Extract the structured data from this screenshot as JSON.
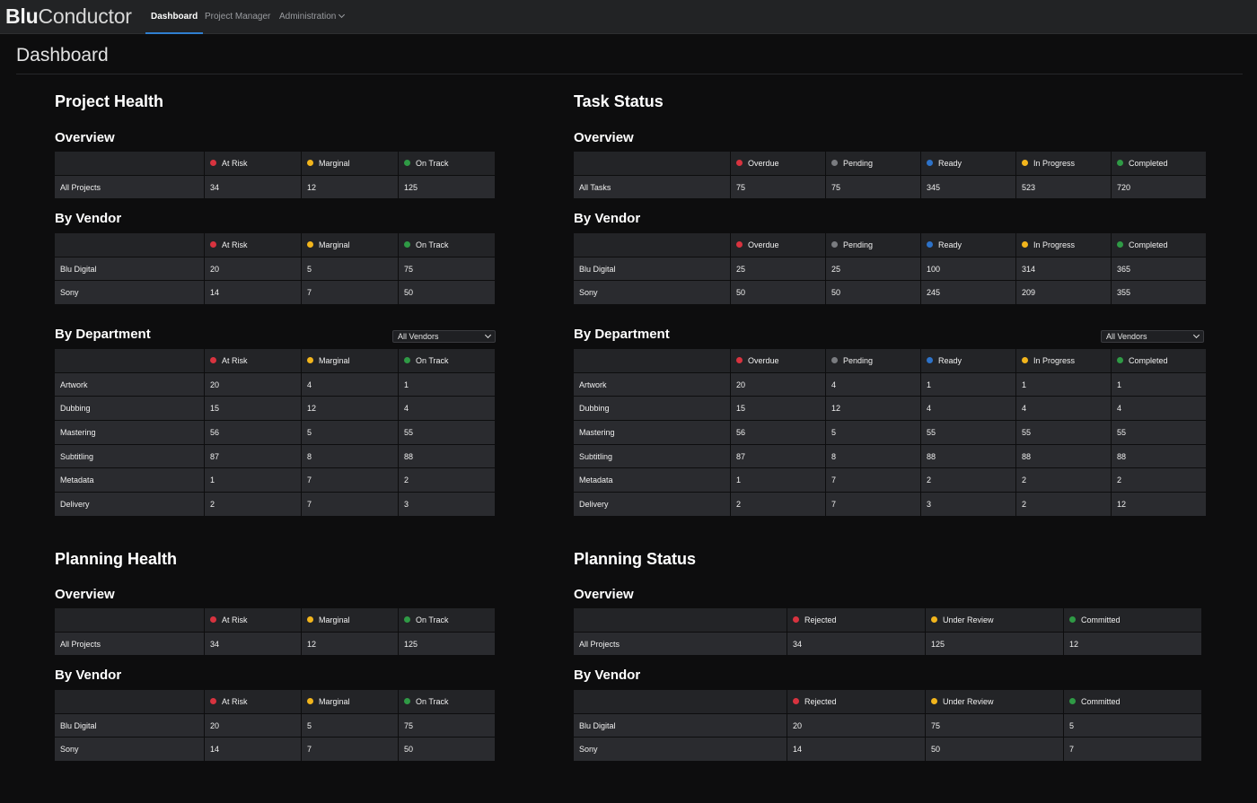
{
  "brand": {
    "bold": "Blu",
    "rest": "Conductor"
  },
  "nav": [
    {
      "label": "Dashboard",
      "active": true
    },
    {
      "label": "Project Manager",
      "active": false
    },
    {
      "label": "Administration",
      "active": false
    }
  ],
  "page_title": "Dashboard",
  "status_colors": {
    "red": "#d8333f",
    "yellow": "#f2b51c",
    "green": "#2f9a45",
    "gray": "#7a7c80",
    "blue": "#2d72c8"
  },
  "project_health": {
    "title": "Project Health",
    "overview": {
      "title": "Overview",
      "headers": [
        {
          "label": "At Risk",
          "color": "#d8333f"
        },
        {
          "label": "Marginal",
          "color": "#f2b51c"
        },
        {
          "label": "On Track",
          "color": "#2f9a45"
        }
      ],
      "rows": [
        [
          "All Projects",
          "34",
          "12",
          "125"
        ]
      ]
    },
    "by_vendor": {
      "title": "By Vendor",
      "headers": [
        {
          "label": "At Risk",
          "color": "#d8333f"
        },
        {
          "label": "Marginal",
          "color": "#f2b51c"
        },
        {
          "label": "On Track",
          "color": "#2f9a45"
        }
      ],
      "rows": [
        [
          "Blu Digital",
          "20",
          "5",
          "75"
        ],
        [
          "Sony",
          "14",
          "7",
          "50"
        ]
      ]
    },
    "by_department": {
      "title": "By Department",
      "filter": "All Vendors",
      "headers": [
        {
          "label": "At Risk",
          "color": "#d8333f"
        },
        {
          "label": "Marginal",
          "color": "#f2b51c"
        },
        {
          "label": "On Track",
          "color": "#2f9a45"
        }
      ],
      "rows": [
        [
          "Artwork",
          "20",
          "4",
          "1"
        ],
        [
          "Dubbing",
          "15",
          "12",
          "4"
        ],
        [
          "Mastering",
          "56",
          "5",
          "55"
        ],
        [
          "Subtitling",
          "87",
          "8",
          "88"
        ],
        [
          "Metadata",
          "1",
          "7",
          "2"
        ],
        [
          "Delivery",
          "2",
          "7",
          "3"
        ]
      ]
    }
  },
  "task_status": {
    "title": "Task Status",
    "overview": {
      "title": "Overview",
      "headers": [
        {
          "label": "Overdue",
          "color": "#d8333f"
        },
        {
          "label": "Pending",
          "color": "#7a7c80"
        },
        {
          "label": "Ready",
          "color": "#2d72c8"
        },
        {
          "label": "In Progress",
          "color": "#f2b51c"
        },
        {
          "label": "Completed",
          "color": "#2f9a45"
        }
      ],
      "rows": [
        [
          "All Tasks",
          "75",
          "75",
          "345",
          "523",
          "720"
        ]
      ]
    },
    "by_vendor": {
      "title": "By Vendor",
      "headers": [
        {
          "label": "Overdue",
          "color": "#d8333f"
        },
        {
          "label": "Pending",
          "color": "#7a7c80"
        },
        {
          "label": "Ready",
          "color": "#2d72c8"
        },
        {
          "label": "In Progress",
          "color": "#f2b51c"
        },
        {
          "label": "Completed",
          "color": "#2f9a45"
        }
      ],
      "rows": [
        [
          "Blu Digital",
          "25",
          "25",
          "100",
          "314",
          "365"
        ],
        [
          "Sony",
          "50",
          "50",
          "245",
          "209",
          "355"
        ]
      ]
    },
    "by_department": {
      "title": "By Department",
      "filter": "All Vendors",
      "headers": [
        {
          "label": "Overdue",
          "color": "#d8333f"
        },
        {
          "label": "Pending",
          "color": "#7a7c80"
        },
        {
          "label": "Ready",
          "color": "#2d72c8"
        },
        {
          "label": "In Progress",
          "color": "#f2b51c"
        },
        {
          "label": "Completed",
          "color": "#2f9a45"
        }
      ],
      "rows": [
        [
          "Artwork",
          "20",
          "4",
          "1",
          "1",
          "1"
        ],
        [
          "Dubbing",
          "15",
          "12",
          "4",
          "4",
          "4"
        ],
        [
          "Mastering",
          "56",
          "5",
          "55",
          "55",
          "55"
        ],
        [
          "Subtitling",
          "87",
          "8",
          "88",
          "88",
          "88"
        ],
        [
          "Metadata",
          "1",
          "7",
          "2",
          "2",
          "2"
        ],
        [
          "Delivery",
          "2",
          "7",
          "3",
          "2",
          "12"
        ]
      ]
    }
  },
  "planning_health": {
    "title": "Planning Health",
    "overview": {
      "title": "Overview",
      "headers": [
        {
          "label": "At Risk",
          "color": "#d8333f"
        },
        {
          "label": "Marginal",
          "color": "#f2b51c"
        },
        {
          "label": "On Track",
          "color": "#2f9a45"
        }
      ],
      "rows": [
        [
          "All Projects",
          "34",
          "12",
          "125"
        ]
      ]
    },
    "by_vendor": {
      "title": "By Vendor",
      "headers": [
        {
          "label": "At Risk",
          "color": "#d8333f"
        },
        {
          "label": "Marginal",
          "color": "#f2b51c"
        },
        {
          "label": "On Track",
          "color": "#2f9a45"
        }
      ],
      "rows": [
        [
          "Blu Digital",
          "20",
          "5",
          "75"
        ],
        [
          "Sony",
          "14",
          "7",
          "50"
        ]
      ]
    }
  },
  "planning_status": {
    "title": "Planning Status",
    "overview": {
      "title": "Overview",
      "headers": [
        {
          "label": "Rejected",
          "color": "#d8333f"
        },
        {
          "label": "Under Review",
          "color": "#f2b51c"
        },
        {
          "label": "Committed",
          "color": "#2f9a45"
        }
      ],
      "rows": [
        [
          "All Projects",
          "34",
          "125",
          "12"
        ]
      ]
    },
    "by_vendor": {
      "title": "By Vendor",
      "headers": [
        {
          "label": "Rejected",
          "color": "#d8333f"
        },
        {
          "label": "Under Review",
          "color": "#f2b51c"
        },
        {
          "label": "Committed",
          "color": "#2f9a45"
        }
      ],
      "rows": [
        [
          "Blu Digital",
          "20",
          "75",
          "5"
        ],
        [
          "Sony",
          "14",
          "50",
          "7"
        ]
      ]
    }
  }
}
